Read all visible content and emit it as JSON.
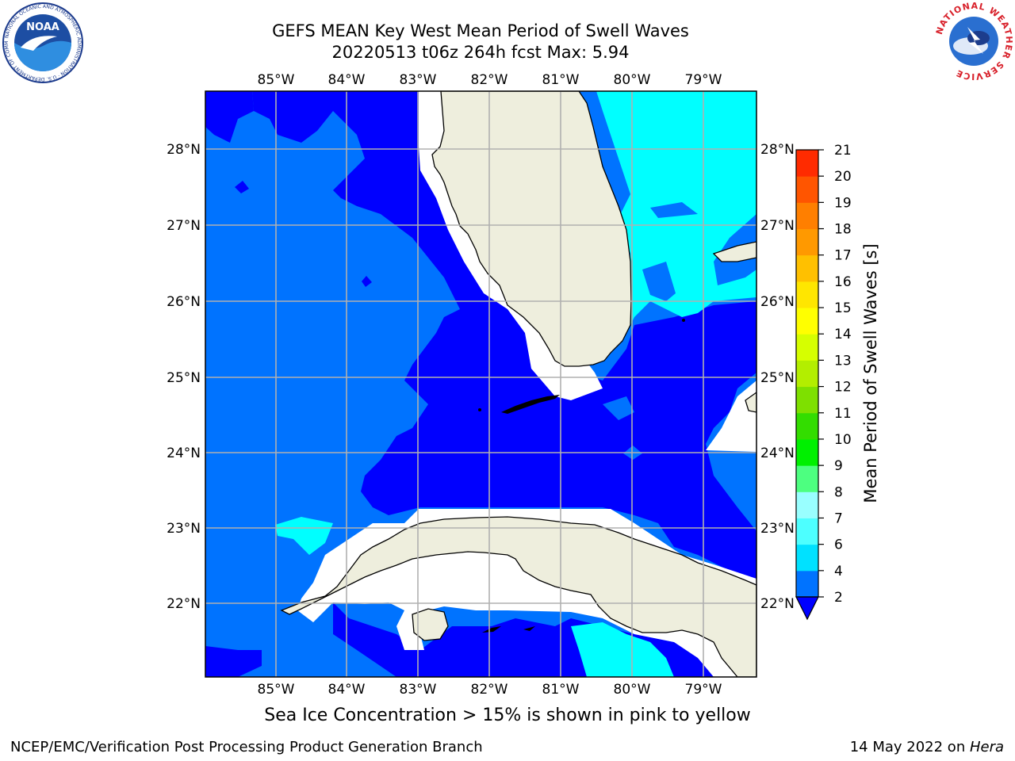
{
  "title": {
    "line1": "GEFS MEAN Key West Mean Period of Swell Waves",
    "line2": "20220513 t06z 264h fcst   Max: 5.94"
  },
  "map": {
    "lon_labels": [
      "85°W",
      "84°W",
      "83°W",
      "82°W",
      "81°W",
      "80°W",
      "79°W"
    ],
    "lat_labels": [
      "28°N",
      "27°N",
      "26°N",
      "25°N",
      "24°N",
      "23°N",
      "22°N"
    ],
    "lon_range": [
      -86.0,
      -78.3
    ],
    "lat_range": [
      21.0,
      28.8
    ]
  },
  "colorbar": {
    "label": "Mean Period of Swell Waves [s]",
    "ticks": [
      "2",
      "4",
      "6",
      "7",
      "8",
      "9",
      "10",
      "11",
      "12",
      "13",
      "14",
      "15",
      "16",
      "17",
      "18",
      "19",
      "20",
      "21"
    ],
    "colors": [
      "#0073ff",
      "#00e1ff",
      "#4dffff",
      "#99ffff",
      "#4dff80",
      "#00f000",
      "#33dd00",
      "#7ee000",
      "#b3ee00",
      "#d6ff00",
      "#ffff00",
      "#ffe600",
      "#ffc000",
      "#ff9900",
      "#ff7f00",
      "#ff5500",
      "#ff2b00"
    ],
    "under_color": "#0000ff"
  },
  "legend_colors": {
    "level_below_4": "#0000ff",
    "level_2_4": "#0073ff",
    "level_4_6": "#00ffff",
    "land": "#eeeedd",
    "grid": "#b0b0b0"
  },
  "notes": {
    "ice": "Sea Ice Concentration > 15% is shown in pink to yellow"
  },
  "footer": {
    "left": "NCEP/EMC/Verification Post Processing Product Generation Branch",
    "date": "14 May 2022 on ",
    "host": "Hera"
  },
  "logos": {
    "noaa_text": "NOAA",
    "noaa_ring": "NATIONAL OCEANIC AND ATMOSPHERIC ADMINISTRATION · U.S. DEPARTMENT OF COMMERCE",
    "nws_ring": "NATIONAL WEATHER SERVICE"
  }
}
